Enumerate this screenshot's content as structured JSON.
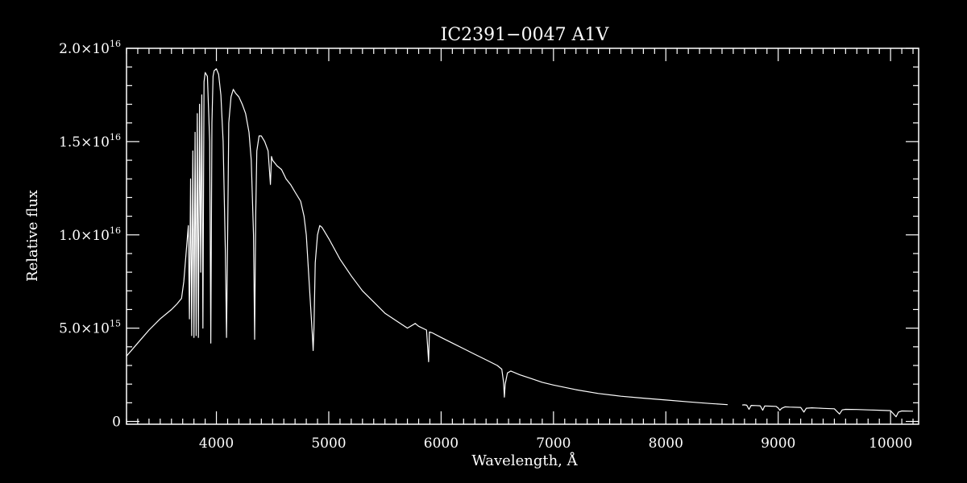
{
  "chart_data": {
    "type": "line",
    "title": "IC2391−0047  A1V",
    "xlabel": "Wavelength, Å",
    "ylabel": "Relative flux",
    "xlim": [
      3200,
      10250
    ],
    "ylim": [
      -150000000000000.0,
      2e+16
    ],
    "xticks": [
      4000,
      5000,
      6000,
      7000,
      8000,
      9000,
      10000
    ],
    "xtick_labels": [
      "4000",
      "5000",
      "6000",
      "7000",
      "8000",
      "9000",
      "10000"
    ],
    "yticks": [
      0,
      5000000000000000.0,
      1e+16,
      1.5e+16,
      2e+16
    ],
    "ytick_labels": [
      {
        "mant": "0",
        "exp": ""
      },
      {
        "mant": "5.0×10",
        "exp": "15"
      },
      {
        "mant": "1.0×10",
        "exp": "16"
      },
      {
        "mant": "1.5×10",
        "exp": "16"
      },
      {
        "mant": "2.0×10",
        "exp": "16"
      }
    ],
    "grid": false,
    "line_color": "#ffffff",
    "background": "#000000",
    "series": [
      {
        "unit": "relative flux",
        "x": [
          3200,
          3300,
          3400,
          3500,
          3600,
          3650,
          3690,
          3710,
          3730,
          3750,
          3760,
          3770,
          3780,
          3790,
          3800,
          3810,
          3820,
          3830,
          3840,
          3850,
          3860,
          3870,
          3880,
          3890,
          3900,
          3920,
          3940,
          3950,
          3960,
          3970,
          3980,
          4000,
          4020,
          4040,
          4060,
          4080,
          4090,
          4100,
          4110,
          4130,
          4150,
          4170,
          4200,
          4230,
          4260,
          4290,
          4310,
          4330,
          4340,
          4350,
          4360,
          4380,
          4400,
          4430,
          4460,
          4481,
          4490,
          4500,
          4540,
          4580,
          4620,
          4660,
          4700,
          4750,
          4780,
          4800,
          4820,
          4840,
          4855,
          4861,
          4868,
          4880,
          4900,
          4920,
          4940,
          4960,
          5000,
          5100,
          5200,
          5300,
          5400,
          5500,
          5600,
          5700,
          5770,
          5800,
          5870,
          5889,
          5896,
          5920,
          6000,
          6100,
          6200,
          6300,
          6400,
          6500,
          6540,
          6556,
          6563,
          6570,
          6590,
          6620,
          6700,
          6800,
          6900,
          7000,
          7200,
          7400,
          7600,
          7800,
          8000,
          8200,
          8400,
          8550,
          8600,
          8680,
          8700,
          8720,
          8740,
          8760,
          8800,
          8840,
          8862,
          8880,
          8920,
          8980,
          9000,
          9015,
          9030,
          9060,
          9100,
          9200,
          9229,
          9250,
          9300,
          9400,
          9500,
          9546,
          9570,
          9600,
          9700,
          9800,
          9900,
          10000,
          10049,
          10070,
          10100,
          10200
        ],
        "y": [
          3500000000000000.0,
          4200000000000000.0,
          4900000000000000.0,
          5500000000000000.0,
          6000000000000000.0,
          6300000000000000.0,
          6600000000000000.0,
          7500000000000000.0,
          9000000000000000.0,
          1.05e+16,
          5500000000000000.0,
          1.3e+16,
          4600000000000000.0,
          1.45e+16,
          4500000000000000.0,
          1.55e+16,
          4600000000000000.0,
          1.65e+16,
          4500000000000000.0,
          1.7e+16,
          8000000000000000.0,
          1.75e+16,
          5000000000000000.0,
          1.82e+16,
          1.87e+16,
          1.85e+16,
          1.5e+16,
          4200000000000000.0,
          1.6e+16,
          1.85e+16,
          1.88e+16,
          1.89e+16,
          1.86e+16,
          1.75e+16,
          1.5e+16,
          9000000000000000.0,
          4500000000000000.0,
          1e+16,
          1.6e+16,
          1.74e+16,
          1.78e+16,
          1.76e+16,
          1.74e+16,
          1.7e+16,
          1.65e+16,
          1.55e+16,
          1.4e+16,
          1e+16,
          4400000000000000.0,
          1.1e+16,
          1.45e+16,
          1.53e+16,
          1.53e+16,
          1.5e+16,
          1.45e+16,
          1.27e+16,
          1.42e+16,
          1.4e+16,
          1.37e+16,
          1.35e+16,
          1.3e+16,
          1.27e+16,
          1.23e+16,
          1.18e+16,
          1.1e+16,
          1e+16,
          8000000000000000.0,
          6000000000000000.0,
          4500000000000000.0,
          3800000000000000.0,
          5000000000000000.0,
          8500000000000000.0,
          1e+16,
          1.05e+16,
          1.04e+16,
          1.02e+16,
          9800000000000000.0,
          8700000000000000.0,
          7800000000000000.0,
          7000000000000000.0,
          6400000000000000.0,
          5800000000000000.0,
          5400000000000000.0,
          5000000000000000.0,
          5250000000000000.0,
          5100000000000000.0,
          4900000000000000.0,
          3200000000000000.0,
          4800000000000000.0,
          4750000000000000.0,
          4500000000000000.0,
          4200000000000000.0,
          3900000000000000.0,
          3600000000000000.0,
          3300000000000000.0,
          3000000000000000.0,
          2800000000000000.0,
          2100000000000000.0,
          1300000000000000.0,
          2000000000000000.0,
          2600000000000000.0,
          2700000000000000.0,
          2500000000000000.0,
          2300000000000000.0,
          2100000000000000.0,
          1950000000000000.0,
          1700000000000000.0,
          1500000000000000.0,
          1350000000000000.0,
          1250000000000000.0,
          1150000000000000.0,
          1050000000000000.0,
          960000000000000.0,
          900000000000000.0,
          null,
          880000000000000.0,
          890000000000000.0,
          870000000000000.0,
          650000000000000.0,
          860000000000000.0,
          850000000000000.0,
          840000000000000.0,
          600000000000000.0,
          830000000000000.0,
          820000000000000.0,
          810000000000000.0,
          720000000000000.0,
          600000000000000.0,
          700000000000000.0,
          780000000000000.0,
          770000000000000.0,
          750000000000000.0,
          500000000000000.0,
          710000000000000.0,
          730000000000000.0,
          700000000000000.0,
          680000000000000.0,
          400000000000000.0,
          620000000000000.0,
          650000000000000.0,
          640000000000000.0,
          620000000000000.0,
          600000000000000.0,
          580000000000000.0,
          250000000000000.0,
          500000000000000.0,
          560000000000000.0,
          550000000000000.0
        ]
      }
    ]
  }
}
